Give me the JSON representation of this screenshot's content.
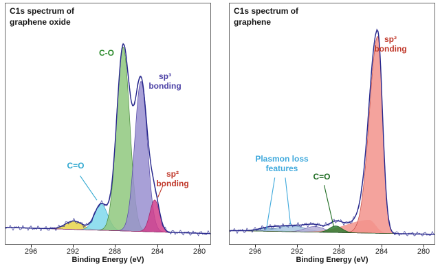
{
  "chart_data": [
    {
      "type": "area",
      "id": "graphene-oxide-spectrum",
      "title": "C1s spectrum of\ngraphene oxide",
      "xlabel": "Binding Energy (eV)",
      "x_ticks": [
        296,
        292,
        288,
        284,
        280
      ],
      "x_domain": [
        298.5,
        279
      ],
      "x_axis_reversed": true,
      "y_max": 1.18,
      "envelope_color": "#26268c",
      "baseline": {
        "left": 0.045,
        "right": 0.012
      },
      "peaks": [
        {
          "name": "minor-peak",
          "center": 292.0,
          "amp": 0.045,
          "sigma": 0.8,
          "fill": "#e8d44a",
          "stroke": "#b99f2e"
        },
        {
          "name": "c-double-o",
          "label": "C=O",
          "center": 289.4,
          "amp": 0.14,
          "sigma": 0.62,
          "fill": "#7fd8ec",
          "stroke": "#35a0c8"
        },
        {
          "name": "c-o",
          "label": "C-O",
          "center": 287.3,
          "amp": 0.98,
          "sigma": 0.62,
          "fill": "#8fc87e",
          "stroke": "#46883a"
        },
        {
          "name": "sp3",
          "label": "sp³ bonding",
          "center": 285.6,
          "amp": 0.8,
          "sigma": 0.6,
          "fill": "#998fd0",
          "stroke": "#5246a6"
        },
        {
          "name": "sp2",
          "label": "sp² bonding",
          "center": 284.3,
          "amp": 0.17,
          "sigma": 0.45,
          "fill": "#d13f8c",
          "stroke": "#a02066"
        }
      ],
      "annotations": [
        {
          "name": "label-c-o",
          "text": "C-O",
          "color": "#2e8b2e",
          "x": 288.9,
          "y": 0.97
        },
        {
          "name": "label-sp3",
          "text": "sp³\nbonding",
          "color": "#4a3fa5",
          "x": 283.3,
          "y": 0.82
        },
        {
          "name": "label-c-double-o",
          "text": "C=O",
          "color": "#2fa8d0",
          "x": 291.8,
          "y": 0.37,
          "leaders": [
            [
              291.4,
              0.32,
              289.8,
              0.19
            ]
          ]
        },
        {
          "name": "label-sp2",
          "text": "sp²\nbonding",
          "color": "#c0392b",
          "x": 282.6,
          "y": 0.3,
          "leaders": [
            [
              283.5,
              0.27,
              284.0,
              0.205
            ]
          ]
        }
      ]
    },
    {
      "type": "area",
      "id": "graphene-spectrum",
      "title": "C1s spectrum of\ngraphene",
      "xlabel": "Binding Energy (eV)",
      "x_ticks": [
        296,
        292,
        288,
        284,
        280
      ],
      "x_domain": [
        298.5,
        279
      ],
      "x_axis_reversed": true,
      "y_max": 1.18,
      "envelope_color": "#26268c",
      "baseline": {
        "left": 0.028,
        "right": 0.008
      },
      "peaks": [
        {
          "name": "plasmon-a",
          "label": "Plasmon loss features",
          "center": 294.9,
          "amp": 0.016,
          "sigma": 0.9,
          "fill": "#a9c7e2",
          "stroke": "#5b86b0"
        },
        {
          "name": "plasmon-b",
          "label": "Plasmon loss features",
          "center": 292.6,
          "amp": 0.032,
          "sigma": 1.3,
          "fill": "#a9c7e2",
          "stroke": "#5b86b0"
        },
        {
          "name": "plasmon-c",
          "center": 290.4,
          "amp": 0.03,
          "sigma": 0.9,
          "fill": "#b5aed8",
          "stroke": "#7a6fb5"
        },
        {
          "name": "sp2-tail",
          "center": 285.2,
          "amp": 0.07,
          "sigma": 0.6,
          "sigma_hi": 2.2,
          "fill": "#f2938c",
          "stroke": "none"
        },
        {
          "name": "sp2",
          "label": "sp² bonding",
          "center": 284.4,
          "amp": 1.05,
          "sigma": 0.45,
          "sigma_hi": 0.8,
          "fill": "#f2938c",
          "stroke": "#c44b42"
        },
        {
          "name": "c-double-o",
          "label": "C=O",
          "center": 288.4,
          "amp": 0.035,
          "sigma": 0.6,
          "fill": "#2f7d32",
          "stroke": "#1d5a20"
        }
      ],
      "annotations": [
        {
          "name": "label-plasmon",
          "text": "Plasmon loss\nfeatures",
          "color": "#3fa9dc",
          "x": 293.5,
          "y": 0.38,
          "leaders": [
            [
              294.2,
              0.31,
              295.0,
              0.035
            ],
            [
              293.2,
              0.31,
              292.7,
              0.06
            ]
          ]
        },
        {
          "name": "label-c-double-o",
          "text": "C=O",
          "color": "#1d6b21",
          "x": 289.7,
          "y": 0.31,
          "leaders": [
            [
              289.5,
              0.27,
              288.6,
              0.05
            ]
          ]
        },
        {
          "name": "label-sp2",
          "text": "sp²\nbonding",
          "color": "#c0392b",
          "x": 283.2,
          "y": 1.02
        }
      ]
    }
  ]
}
